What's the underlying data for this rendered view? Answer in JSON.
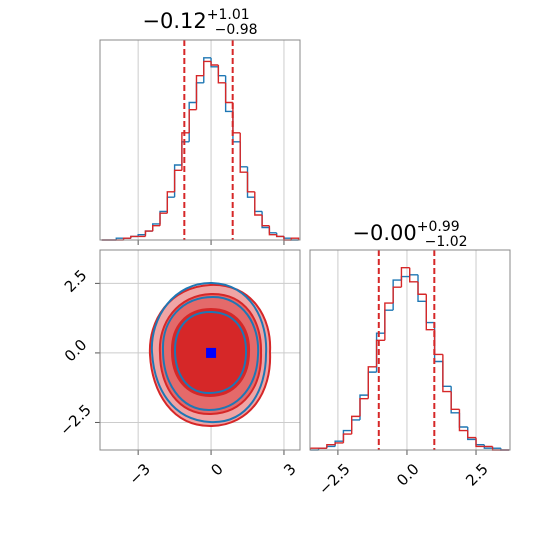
{
  "chart_data": [
    {
      "type": "histogram",
      "title": "−0.12",
      "title_upper": "+1.01",
      "title_lower": "−0.98",
      "bins": [
        -4.5,
        -4.2,
        -3.9,
        -3.6,
        -3.3,
        -3.0,
        -2.7,
        -2.4,
        -2.1,
        -1.8,
        -1.5,
        -1.2,
        -0.9,
        -0.6,
        -0.3,
        0,
        0.3,
        0.6,
        0.9,
        1.2,
        1.5,
        1.8,
        2.1,
        2.4,
        2.7,
        3.0,
        3.3,
        3.6
      ],
      "series": [
        {
          "color": "#1f77b4",
          "values": [
            0,
            0,
            1,
            1,
            2,
            3,
            5,
            9,
            16,
            24,
            42,
            55,
            77,
            88,
            102,
            97,
            92,
            72,
            55,
            41,
            24,
            16,
            7,
            4,
            2,
            1,
            0
          ]
        },
        {
          "color": "#d62728",
          "values": [
            0,
            0,
            0,
            1,
            2,
            2,
            5,
            8,
            15,
            27,
            39,
            60,
            73,
            92,
            100,
            98,
            88,
            77,
            60,
            38,
            27,
            14,
            8,
            3,
            2,
            0,
            1
          ]
        }
      ],
      "xlim": [
        -4.57,
        3.66
      ],
      "ylim": [
        0,
        112
      ],
      "quantiles": [
        -1.1,
        0.89
      ],
      "quantile_color": "#d62728",
      "grid": true
    },
    {
      "type": "hist2d",
      "xlim": [
        -4.57,
        3.66
      ],
      "ylim": [
        -3.49,
        3.7
      ],
      "xticks": [
        {
          "value": -3,
          "label": "−3"
        },
        0,
        3
      ],
      "yticks": [
        {
          "value": -2.5,
          "label": "−2.5"
        },
        {
          "value": 0,
          "label": "0.0"
        },
        2.5
      ],
      "peak": [
        0,
        0
      ],
      "peak_color": "#0000ff",
      "grid": true
    },
    {
      "type": "histogram",
      "title": "−0.00",
      "title_upper": "+0.99",
      "title_lower": "−1.02",
      "bins": [
        -3.5,
        -3.2,
        -2.9,
        -2.6,
        -2.3,
        -2.0,
        -1.7,
        -1.4,
        -1.1,
        -0.8,
        -0.5,
        -0.2,
        0.1,
        0.4,
        0.7,
        1.0,
        1.3,
        1.6,
        1.9,
        2.2,
        2.5,
        2.8,
        3.1,
        3.4,
        3.7
      ],
      "series": [
        {
          "color": "#1f77b4",
          "values": [
            0,
            1,
            2,
            5,
            11,
            17,
            31,
            44,
            66,
            79,
            96,
            98,
            99,
            84,
            72,
            50,
            36,
            21,
            13,
            6,
            3,
            1,
            1,
            0
          ]
        },
        {
          "color": "#d62728",
          "values": [
            1,
            1,
            3,
            4,
            9,
            19,
            29,
            47,
            62,
            83,
            92,
            103,
            95,
            88,
            68,
            54,
            33,
            23,
            11,
            7,
            2,
            2,
            0,
            0
          ]
        }
      ],
      "xlim": [
        -3.51,
        3.73
      ],
      "ylim": [
        0,
        113
      ],
      "xticks": [
        {
          "value": -2.5,
          "label": "−2.5"
        },
        {
          "value": 0,
          "label": "0.0"
        },
        2.5
      ],
      "quantiles": [
        -1.02,
        0.99
      ],
      "quantile_color": "#d62728",
      "grid": true
    }
  ]
}
